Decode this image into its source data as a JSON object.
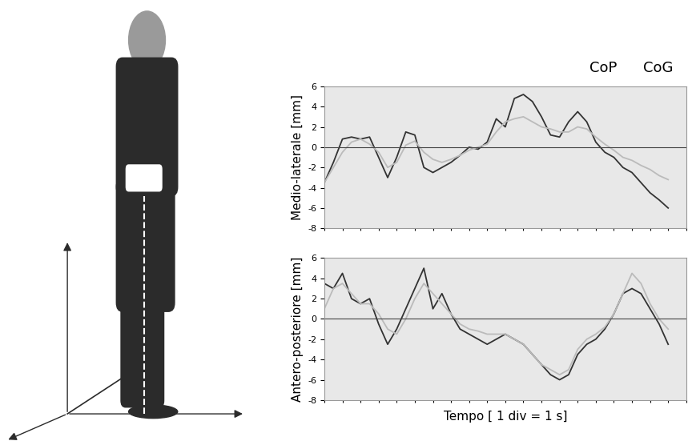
{
  "chart_data": [
    {
      "type": "line",
      "ylabel": "Medio-laterale [mm]",
      "legend": "upper right",
      "xlim": [
        0,
        20
      ],
      "xticks": [
        0,
        1,
        2,
        3,
        4,
        5,
        6,
        7,
        8,
        9,
        10,
        11,
        12,
        13,
        14,
        15,
        16,
        17,
        18,
        19,
        20
      ],
      "ylim": [
        -8,
        6
      ],
      "yticks": [
        -8,
        -6,
        -4,
        -2,
        0,
        2,
        4,
        6
      ],
      "tick_labels": "y",
      "x": [
        0,
        0.5,
        1,
        1.5,
        2,
        2.5,
        3,
        3.5,
        4,
        4.5,
        5,
        5.5,
        6,
        6.5,
        7,
        7.5,
        8,
        8.5,
        9,
        9.5,
        10,
        10.5,
        11,
        11.5,
        12,
        12.5,
        13,
        13.5,
        14,
        14.5,
        15,
        15.5,
        16,
        16.5,
        17,
        17.5,
        18,
        18.5,
        19
      ],
      "series": [
        {
          "name": "CoP",
          "color": "#333333",
          "values": [
            -3.5,
            -1.5,
            0.8,
            1.0,
            0.8,
            1.0,
            -1.0,
            -3.0,
            -1.0,
            1.5,
            1.2,
            -2.0,
            -2.5,
            -2.0,
            -1.5,
            -0.8,
            0,
            -0.2,
            0.5,
            2.8,
            2.0,
            4.8,
            5.2,
            4.5,
            3.0,
            1.2,
            1.0,
            2.5,
            3.5,
            2.5,
            0.5,
            -0.5,
            -1.0,
            -2.0,
            -2.5,
            -3.5,
            -4.5,
            -5.2,
            -6.0
          ]
        },
        {
          "name": "CoG",
          "color": "#bbbbbb",
          "values": [
            -3.5,
            -2.0,
            -0.5,
            0.5,
            0.8,
            0.3,
            -0.5,
            -2.0,
            -1.5,
            0.2,
            0.6,
            -0.5,
            -1.2,
            -1.5,
            -1.2,
            -0.8,
            -0.3,
            0,
            0.3,
            1.5,
            2.5,
            2.8,
            3.0,
            2.5,
            2.0,
            1.8,
            1.5,
            1.5,
            2.0,
            1.8,
            1.0,
            0.3,
            -0.3,
            -1.0,
            -1.3,
            -1.8,
            -2.2,
            -2.8,
            -3.2
          ]
        }
      ]
    },
    {
      "type": "line",
      "ylabel": "Antero-posteriore [mm]",
      "xlabel": "Tempo [ 1 div = 1 s]",
      "xlim": [
        0,
        20
      ],
      "xticks": [
        0,
        1,
        2,
        3,
        4,
        5,
        6,
        7,
        8,
        9,
        10,
        11,
        12,
        13,
        14,
        15,
        16,
        17,
        18,
        19,
        20
      ],
      "ylim": [
        -8,
        6
      ],
      "yticks": [
        -8,
        -6,
        -4,
        -2,
        0,
        2,
        4,
        6
      ],
      "tick_labels": "y",
      "x": [
        0,
        0.5,
        1,
        1.5,
        2,
        2.5,
        3,
        3.5,
        4,
        4.5,
        5,
        5.5,
        6,
        6.5,
        7,
        7.5,
        8,
        8.5,
        9,
        9.5,
        10,
        10.5,
        11,
        11.5,
        12,
        12.5,
        13,
        13.5,
        14,
        14.5,
        15,
        15.5,
        16,
        16.5,
        17,
        17.5,
        18,
        18.5,
        19
      ],
      "series": [
        {
          "name": "CoP",
          "color": "#333333",
          "values": [
            3.5,
            3.0,
            4.5,
            2.0,
            1.5,
            2.0,
            -0.5,
            -2.5,
            -1.0,
            1.0,
            3.0,
            5.0,
            1.0,
            2.5,
            0.5,
            -1.0,
            -1.5,
            -2.0,
            -2.5,
            -2.0,
            -1.5,
            -2.0,
            -2.5,
            -3.5,
            -4.5,
            -5.5,
            -6.0,
            -5.5,
            -3.5,
            -2.5,
            -2.0,
            -1.0,
            0.5,
            2.5,
            3.0,
            2.5,
            1.0,
            -0.5,
            -2.5
          ]
        },
        {
          "name": "CoG",
          "color": "#bbbbbb",
          "values": [
            1.0,
            3.0,
            3.5,
            2.5,
            1.5,
            1.5,
            0.5,
            -1.0,
            -1.5,
            0.0,
            2.0,
            3.5,
            2.5,
            1.5,
            0.5,
            -0.5,
            -1.0,
            -1.2,
            -1.5,
            -1.5,
            -1.5,
            -2.0,
            -2.5,
            -3.5,
            -4.5,
            -5.0,
            -5.5,
            -5.0,
            -3.0,
            -2.0,
            -1.5,
            -0.8,
            0.5,
            2.5,
            4.5,
            3.5,
            1.5,
            0.0,
            -1.0
          ]
        }
      ]
    }
  ]
}
